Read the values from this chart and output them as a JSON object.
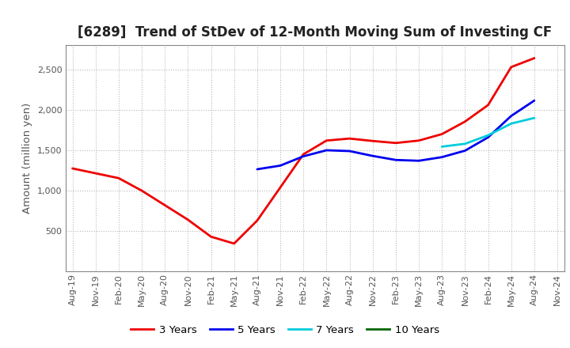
{
  "title": "[6289]  Trend of StDev of 12-Month Moving Sum of Investing CF",
  "ylabel": "Amount (million yen)",
  "background_color": "#ffffff",
  "grid_color": "#b0b0b0",
  "title_fontsize": 12,
  "label_fontsize": 9.5,
  "tick_fontsize": 8,
  "ylim": [
    0,
    2800
  ],
  "yticks": [
    500,
    1000,
    1500,
    2000,
    2500
  ],
  "series": {
    "3yr": {
      "color": "#ee0000",
      "label": "3 Years",
      "points": [
        [
          "Aug-19",
          1275
        ],
        [
          "Nov-19",
          1215
        ],
        [
          "Feb-20",
          1155
        ],
        [
          "May-20",
          1000
        ],
        [
          "Aug-20",
          820
        ],
        [
          "Nov-20",
          640
        ],
        [
          "Feb-21",
          430
        ],
        [
          "May-21",
          345
        ],
        [
          "Aug-21",
          630
        ],
        [
          "Nov-21",
          1040
        ],
        [
          "Feb-22",
          1450
        ],
        [
          "May-22",
          1620
        ],
        [
          "Aug-22",
          1645
        ],
        [
          "Nov-22",
          1615
        ],
        [
          "Feb-23",
          1590
        ],
        [
          "May-23",
          1620
        ],
        [
          "Aug-23",
          1700
        ],
        [
          "Nov-23",
          1855
        ],
        [
          "Feb-24",
          2060
        ],
        [
          "May-24",
          2530
        ],
        [
          "Aug-24",
          2640
        ]
      ]
    },
    "5yr": {
      "color": "#0000ee",
      "label": "5 Years",
      "points": [
        [
          "Aug-21",
          1265
        ],
        [
          "Nov-21",
          1310
        ],
        [
          "Feb-22",
          1425
        ],
        [
          "May-22",
          1500
        ],
        [
          "Aug-22",
          1490
        ],
        [
          "Nov-22",
          1430
        ],
        [
          "Feb-23",
          1380
        ],
        [
          "May-23",
          1370
        ],
        [
          "Aug-23",
          1415
        ],
        [
          "Nov-23",
          1495
        ],
        [
          "Feb-24",
          1660
        ],
        [
          "May-24",
          1925
        ],
        [
          "Aug-24",
          2115
        ]
      ]
    },
    "7yr": {
      "color": "#00ccdd",
      "label": "7 Years",
      "points": [
        [
          "Aug-23",
          1545
        ],
        [
          "Nov-23",
          1580
        ],
        [
          "Feb-24",
          1685
        ],
        [
          "May-24",
          1830
        ],
        [
          "Aug-24",
          1900
        ]
      ]
    },
    "10yr": {
      "color": "#006600",
      "label": "10 Years",
      "points": []
    }
  },
  "xtick_labels": [
    "Aug-19",
    "Nov-19",
    "Feb-20",
    "May-20",
    "Aug-20",
    "Nov-20",
    "Feb-21",
    "May-21",
    "Aug-21",
    "Nov-21",
    "Feb-22",
    "May-22",
    "Aug-22",
    "Nov-22",
    "Feb-23",
    "May-23",
    "Aug-23",
    "Nov-23",
    "Feb-24",
    "May-24",
    "Aug-24",
    "Nov-24"
  ]
}
